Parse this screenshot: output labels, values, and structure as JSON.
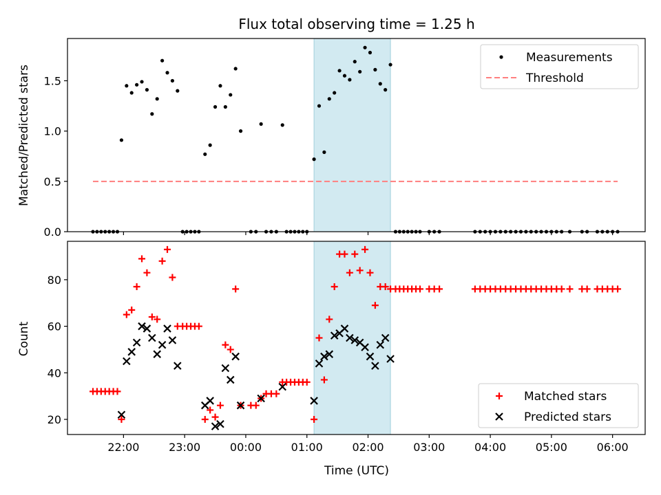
{
  "title": "Flux total observing time = 1.25 h",
  "xlabel": "Time (UTC)",
  "x_ticks": [
    "22:00",
    "23:00",
    "00:00",
    "01:00",
    "02:00",
    "03:00",
    "04:00",
    "05:00",
    "06:00"
  ],
  "colors": {
    "measurements": "#000000",
    "threshold": "#ff7f7f",
    "matched": "#ff0000",
    "predicted": "#000000",
    "shaded_span": "#add8e6"
  },
  "chart_data": [
    {
      "type": "scatter",
      "ylabel": "Matched/Predicted stars",
      "xlim": [
        "21:05",
        "06:32"
      ],
      "ylim": [
        0,
        1.92
      ],
      "y_ticks": [
        "0.0",
        "0.5",
        "1.0",
        "1.5"
      ],
      "shaded_span": [
        "01:07",
        "02:22"
      ],
      "legend": {
        "position": "top-right",
        "entries": [
          {
            "label": "Measurements",
            "marker": "dot"
          },
          {
            "label": "Threshold",
            "marker": "dashed-line"
          }
        ]
      },
      "threshold": {
        "value": 0.5,
        "x_range": [
          "21:30",
          "06:05"
        ]
      },
      "series": [
        {
          "name": "Measurements",
          "points": [
            [
              "21:30",
              0
            ],
            [
              "21:34",
              0
            ],
            [
              "21:38",
              0
            ],
            [
              "21:42",
              0
            ],
            [
              "21:46",
              0
            ],
            [
              "21:50",
              0
            ],
            [
              "21:54",
              0
            ],
            [
              "21:58",
              0.91
            ],
            [
              "22:03",
              1.45
            ],
            [
              "22:08",
              1.38
            ],
            [
              "22:13",
              1.46
            ],
            [
              "22:18",
              1.49
            ],
            [
              "22:23",
              1.41
            ],
            [
              "22:28",
              1.17
            ],
            [
              "22:33",
              1.32
            ],
            [
              "22:38",
              1.7
            ],
            [
              "22:43",
              1.58
            ],
            [
              "22:48",
              1.5
            ],
            [
              "22:53",
              1.4
            ],
            [
              "22:58",
              0
            ],
            [
              "23:02",
              0
            ],
            [
              "23:06",
              0
            ],
            [
              "23:10",
              0
            ],
            [
              "23:14",
              0
            ],
            [
              "23:20",
              0.77
            ],
            [
              "23:25",
              0.86
            ],
            [
              "23:30",
              1.24
            ],
            [
              "23:35",
              1.45
            ],
            [
              "23:40",
              1.24
            ],
            [
              "23:45",
              1.36
            ],
            [
              "23:50",
              1.62
            ],
            [
              "23:55",
              1.0
            ],
            [
              "00:05",
              0
            ],
            [
              "00:10",
              0
            ],
            [
              "00:15",
              1.07
            ],
            [
              "00:20",
              0
            ],
            [
              "00:25",
              0
            ],
            [
              "00:30",
              0
            ],
            [
              "00:36",
              1.06
            ],
            [
              "00:40",
              0
            ],
            [
              "00:44",
              0
            ],
            [
              "00:48",
              0
            ],
            [
              "00:52",
              0
            ],
            [
              "00:56",
              0
            ],
            [
              "01:00",
              0
            ],
            [
              "01:07",
              0.72
            ],
            [
              "01:12",
              1.25
            ],
            [
              "01:17",
              0.79
            ],
            [
              "01:22",
              1.32
            ],
            [
              "01:27",
              1.38
            ],
            [
              "01:32",
              1.6
            ],
            [
              "01:37",
              1.55
            ],
            [
              "01:42",
              1.51
            ],
            [
              "01:47",
              1.69
            ],
            [
              "01:52",
              1.59
            ],
            [
              "01:57",
              1.83
            ],
            [
              "02:02",
              1.78
            ],
            [
              "02:07",
              1.61
            ],
            [
              "02:12",
              1.47
            ],
            [
              "02:17",
              1.41
            ],
            [
              "02:22",
              1.66
            ],
            [
              "02:27",
              0
            ],
            [
              "02:31",
              0
            ],
            [
              "02:35",
              0
            ],
            [
              "02:39",
              0
            ],
            [
              "02:43",
              0
            ],
            [
              "02:47",
              0
            ],
            [
              "02:51",
              0
            ],
            [
              "03:00",
              0
            ],
            [
              "03:05",
              0
            ],
            [
              "03:10",
              0
            ],
            [
              "03:45",
              0
            ],
            [
              "03:50",
              0
            ],
            [
              "03:55",
              0
            ],
            [
              "04:00",
              0
            ],
            [
              "04:05",
              0
            ],
            [
              "04:10",
              0
            ],
            [
              "04:15",
              0
            ],
            [
              "04:20",
              0
            ],
            [
              "04:25",
              0
            ],
            [
              "04:30",
              0
            ],
            [
              "04:35",
              0
            ],
            [
              "04:40",
              0
            ],
            [
              "04:45",
              0
            ],
            [
              "04:50",
              0
            ],
            [
              "04:55",
              0
            ],
            [
              "05:00",
              0
            ],
            [
              "05:05",
              0
            ],
            [
              "05:10",
              0
            ],
            [
              "05:18",
              0
            ],
            [
              "05:30",
              0
            ],
            [
              "05:35",
              0
            ],
            [
              "05:45",
              0
            ],
            [
              "05:50",
              0
            ],
            [
              "05:55",
              0
            ],
            [
              "06:00",
              0
            ],
            [
              "06:05",
              0
            ]
          ]
        }
      ]
    },
    {
      "type": "scatter",
      "ylabel": "Count",
      "xlim": [
        "21:05",
        "06:32"
      ],
      "ylim": [
        13.5,
        96.5
      ],
      "y_ticks": [
        "20",
        "40",
        "60",
        "80"
      ],
      "shaded_span": [
        "01:07",
        "02:22"
      ],
      "legend": {
        "position": "bottom-right",
        "entries": [
          {
            "label": "Matched stars",
            "marker": "plus"
          },
          {
            "label": "Predicted stars",
            "marker": "x"
          }
        ]
      },
      "series": [
        {
          "name": "Matched stars",
          "points": [
            [
              "21:30",
              32
            ],
            [
              "21:34",
              32
            ],
            [
              "21:38",
              32
            ],
            [
              "21:42",
              32
            ],
            [
              "21:46",
              32
            ],
            [
              "21:50",
              32
            ],
            [
              "21:54",
              32
            ],
            [
              "21:58",
              20
            ],
            [
              "22:03",
              65
            ],
            [
              "22:08",
              67
            ],
            [
              "22:13",
              77
            ],
            [
              "22:18",
              89
            ],
            [
              "22:23",
              83
            ],
            [
              "22:28",
              64
            ],
            [
              "22:33",
              63
            ],
            [
              "22:38",
              88
            ],
            [
              "22:43",
              93
            ],
            [
              "22:48",
              81
            ],
            [
              "22:53",
              60
            ],
            [
              "22:58",
              60
            ],
            [
              "23:02",
              60
            ],
            [
              "23:06",
              60
            ],
            [
              "23:10",
              60
            ],
            [
              "23:14",
              60
            ],
            [
              "23:20",
              20
            ],
            [
              "23:25",
              24
            ],
            [
              "23:30",
              21
            ],
            [
              "23:35",
              26
            ],
            [
              "23:40",
              52
            ],
            [
              "23:45",
              50
            ],
            [
              "23:50",
              76
            ],
            [
              "23:55",
              26
            ],
            [
              "00:05",
              26
            ],
            [
              "00:10",
              26
            ],
            [
              "00:15",
              29
            ],
            [
              "00:20",
              31
            ],
            [
              "00:25",
              31
            ],
            [
              "00:30",
              31
            ],
            [
              "00:36",
              36
            ],
            [
              "00:40",
              36
            ],
            [
              "00:44",
              36
            ],
            [
              "00:48",
              36
            ],
            [
              "00:52",
              36
            ],
            [
              "00:56",
              36
            ],
            [
              "01:00",
              36
            ],
            [
              "01:07",
              20
            ],
            [
              "01:12",
              55
            ],
            [
              "01:17",
              37
            ],
            [
              "01:22",
              63
            ],
            [
              "01:27",
              77
            ],
            [
              "01:32",
              91
            ],
            [
              "01:37",
              91
            ],
            [
              "01:42",
              83
            ],
            [
              "01:47",
              91
            ],
            [
              "01:52",
              84
            ],
            [
              "01:57",
              93
            ],
            [
              "02:02",
              83
            ],
            [
              "02:07",
              69
            ],
            [
              "02:12",
              77
            ],
            [
              "02:17",
              77
            ],
            [
              "02:22",
              76
            ],
            [
              "02:27",
              76
            ],
            [
              "02:31",
              76
            ],
            [
              "02:35",
              76
            ],
            [
              "02:39",
              76
            ],
            [
              "02:43",
              76
            ],
            [
              "02:47",
              76
            ],
            [
              "02:51",
              76
            ],
            [
              "03:00",
              76
            ],
            [
              "03:05",
              76
            ],
            [
              "03:10",
              76
            ],
            [
              "03:45",
              76
            ],
            [
              "03:50",
              76
            ],
            [
              "03:55",
              76
            ],
            [
              "04:00",
              76
            ],
            [
              "04:05",
              76
            ],
            [
              "04:10",
              76
            ],
            [
              "04:15",
              76
            ],
            [
              "04:20",
              76
            ],
            [
              "04:25",
              76
            ],
            [
              "04:30",
              76
            ],
            [
              "04:35",
              76
            ],
            [
              "04:40",
              76
            ],
            [
              "04:45",
              76
            ],
            [
              "04:50",
              76
            ],
            [
              "04:55",
              76
            ],
            [
              "05:00",
              76
            ],
            [
              "05:05",
              76
            ],
            [
              "05:10",
              76
            ],
            [
              "05:18",
              76
            ],
            [
              "05:30",
              76
            ],
            [
              "05:35",
              76
            ],
            [
              "05:45",
              76
            ],
            [
              "05:50",
              76
            ],
            [
              "05:55",
              76
            ],
            [
              "06:00",
              76
            ],
            [
              "06:05",
              76
            ]
          ]
        },
        {
          "name": "Predicted stars",
          "points": [
            [
              "21:58",
              22
            ],
            [
              "22:03",
              45
            ],
            [
              "22:08",
              49
            ],
            [
              "22:13",
              53
            ],
            [
              "22:18",
              60
            ],
            [
              "22:23",
              59
            ],
            [
              "22:28",
              55
            ],
            [
              "22:33",
              48
            ],
            [
              "22:38",
              52
            ],
            [
              "22:43",
              59
            ],
            [
              "22:48",
              54
            ],
            [
              "22:53",
              43
            ],
            [
              "23:20",
              26
            ],
            [
              "23:25",
              28
            ],
            [
              "23:30",
              17
            ],
            [
              "23:35",
              18
            ],
            [
              "23:40",
              42
            ],
            [
              "23:45",
              37
            ],
            [
              "23:50",
              47
            ],
            [
              "23:55",
              26
            ],
            [
              "00:15",
              29
            ],
            [
              "00:36",
              34
            ],
            [
              "01:07",
              28
            ],
            [
              "01:12",
              44
            ],
            [
              "01:17",
              47
            ],
            [
              "01:22",
              48
            ],
            [
              "01:27",
              56
            ],
            [
              "01:32",
              57
            ],
            [
              "01:37",
              59
            ],
            [
              "01:42",
              55
            ],
            [
              "01:47",
              54
            ],
            [
              "01:52",
              53
            ],
            [
              "01:57",
              51
            ],
            [
              "02:02",
              47
            ],
            [
              "02:07",
              43
            ],
            [
              "02:12",
              52
            ],
            [
              "02:17",
              55
            ],
            [
              "02:22",
              46
            ]
          ]
        }
      ]
    }
  ]
}
